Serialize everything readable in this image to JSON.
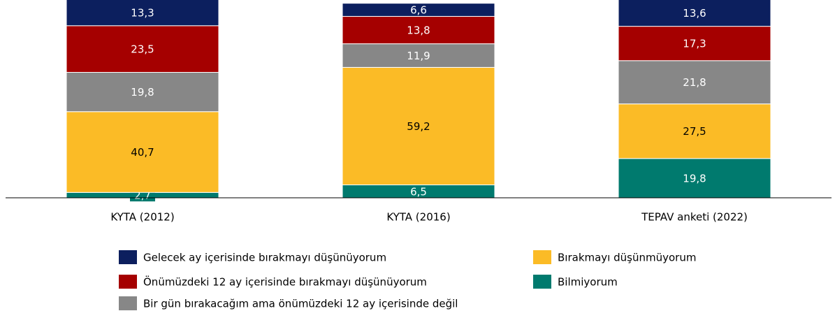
{
  "chart_data": {
    "type": "stacked_bar",
    "categories": [
      "KYTA (2012)",
      "KYTA (2016)",
      "TEPAV anketi (2022)"
    ],
    "series": [
      {
        "name": "Bilmiyorum",
        "color": "#007a6e",
        "values": [
          2.7,
          6.5,
          19.8
        ],
        "value_labels": [
          "2,7",
          "6,5",
          "19,8"
        ]
      },
      {
        "name": "Bırakmayı düşünmüyorum",
        "color": "#fbbb26",
        "values": [
          40.7,
          59.2,
          27.5
        ],
        "value_labels": [
          "40,7",
          "59,2",
          "27,5"
        ]
      },
      {
        "name": "Bir gün bırakacağım ama önümüzdeki 12 ay içerisinde değil",
        "color": "#878787",
        "values": [
          19.8,
          11.9,
          21.8
        ],
        "value_labels": [
          "19,8",
          "11,9",
          "21,8"
        ]
      },
      {
        "name": "Önümüzdeki 12 ay içerisinde bırakmayı düşünüyorum",
        "color": "#a50000",
        "values": [
          23.5,
          13.8,
          17.3
        ],
        "value_labels": [
          "23,5",
          "13,8",
          "17,3"
        ]
      },
      {
        "name": "Gelecek ay içerisinde bırakmayı düşünüyorum",
        "color": "#0c1f5e",
        "values": [
          13.3,
          6.6,
          13.6
        ],
        "value_labels": [
          "13,3",
          "6,6",
          "13,6"
        ]
      }
    ]
  }
}
